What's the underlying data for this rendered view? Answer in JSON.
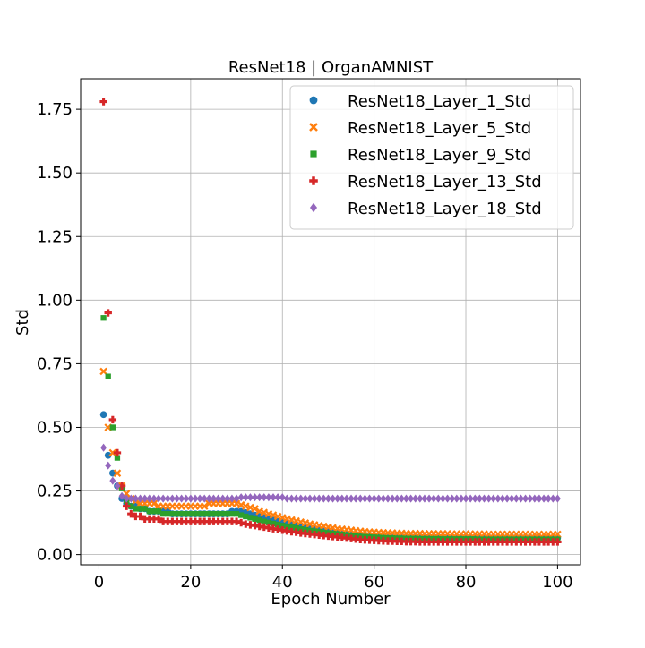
{
  "chart_data": {
    "type": "scatter",
    "title": "ResNet18 | OrganAMNIST",
    "xlabel": "Epoch Number",
    "ylabel": "Std",
    "xlim": [
      -4,
      105
    ],
    "ylim": [
      -0.04,
      1.87
    ],
    "xticks": [
      0,
      20,
      40,
      60,
      80,
      100
    ],
    "xtick_labels": [
      "0",
      "20",
      "40",
      "60",
      "80",
      "100"
    ],
    "yticks": [
      0.0,
      0.25,
      0.5,
      0.75,
      1.0,
      1.25,
      1.5,
      1.75
    ],
    "ytick_labels": [
      "0.00",
      "0.25",
      "0.50",
      "0.75",
      "1.00",
      "1.25",
      "1.50",
      "1.75"
    ],
    "grid": true,
    "legend_position": "top-right",
    "x": [
      1,
      2,
      3,
      4,
      5,
      6,
      7,
      8,
      9,
      10,
      11,
      12,
      13,
      14,
      15,
      16,
      17,
      18,
      19,
      20,
      21,
      22,
      23,
      24,
      25,
      26,
      27,
      28,
      29,
      30,
      31,
      32,
      33,
      34,
      35,
      36,
      37,
      38,
      39,
      40,
      41,
      42,
      43,
      44,
      45,
      46,
      47,
      48,
      49,
      50,
      51,
      52,
      53,
      54,
      55,
      56,
      57,
      58,
      59,
      60,
      61,
      62,
      63,
      64,
      65,
      66,
      67,
      68,
      69,
      70,
      71,
      72,
      73,
      74,
      75,
      76,
      77,
      78,
      79,
      80,
      81,
      82,
      83,
      84,
      85,
      86,
      87,
      88,
      89,
      90,
      91,
      92,
      93,
      94,
      95,
      96,
      97,
      98,
      99,
      100
    ],
    "series": [
      {
        "name": "ResNet18_Layer_1_Std",
        "color": "#1f77b4",
        "marker": "circle",
        "values": [
          0.55,
          0.39,
          0.32,
          0.27,
          0.22,
          0.2,
          0.19,
          0.19,
          0.18,
          0.18,
          0.17,
          0.17,
          0.17,
          0.17,
          0.17,
          0.16,
          0.16,
          0.16,
          0.16,
          0.16,
          0.16,
          0.16,
          0.16,
          0.16,
          0.16,
          0.16,
          0.16,
          0.16,
          0.17,
          0.17,
          0.17,
          0.165,
          0.16,
          0.155,
          0.15,
          0.145,
          0.14,
          0.135,
          0.13,
          0.126,
          0.122,
          0.118,
          0.114,
          0.11,
          0.107,
          0.104,
          0.101,
          0.098,
          0.095,
          0.092,
          0.09,
          0.088,
          0.086,
          0.084,
          0.082,
          0.08,
          0.078,
          0.077,
          0.076,
          0.075,
          0.074,
          0.073,
          0.072,
          0.072,
          0.071,
          0.071,
          0.07,
          0.07,
          0.07,
          0.07,
          0.069,
          0.069,
          0.069,
          0.069,
          0.069,
          0.068,
          0.068,
          0.068,
          0.068,
          0.068,
          0.068,
          0.068,
          0.067,
          0.067,
          0.067,
          0.067,
          0.067,
          0.067,
          0.067,
          0.067,
          0.067,
          0.067,
          0.067,
          0.067,
          0.067,
          0.066,
          0.066,
          0.066,
          0.066,
          0.066
        ]
      },
      {
        "name": "ResNet18_Layer_5_Std",
        "color": "#ff7f0e",
        "marker": "x",
        "values": [
          0.72,
          0.5,
          0.4,
          0.32,
          0.27,
          0.24,
          0.22,
          0.21,
          0.2,
          0.2,
          0.2,
          0.2,
          0.19,
          0.19,
          0.19,
          0.19,
          0.19,
          0.19,
          0.19,
          0.19,
          0.19,
          0.19,
          0.19,
          0.2,
          0.2,
          0.2,
          0.2,
          0.2,
          0.2,
          0.2,
          0.195,
          0.19,
          0.185,
          0.18,
          0.17,
          0.165,
          0.16,
          0.155,
          0.15,
          0.145,
          0.14,
          0.136,
          0.132,
          0.128,
          0.124,
          0.12,
          0.117,
          0.114,
          0.111,
          0.108,
          0.105,
          0.102,
          0.1,
          0.098,
          0.096,
          0.094,
          0.092,
          0.09,
          0.089,
          0.088,
          0.087,
          0.086,
          0.085,
          0.085,
          0.084,
          0.084,
          0.083,
          0.083,
          0.083,
          0.083,
          0.082,
          0.082,
          0.082,
          0.082,
          0.082,
          0.082,
          0.081,
          0.081,
          0.081,
          0.081,
          0.081,
          0.081,
          0.081,
          0.081,
          0.08,
          0.08,
          0.08,
          0.08,
          0.08,
          0.08,
          0.08,
          0.08,
          0.08,
          0.08,
          0.08,
          0.08,
          0.08,
          0.08,
          0.08,
          0.08
        ]
      },
      {
        "name": "ResNet18_Layer_9_Std",
        "color": "#2ca02c",
        "marker": "square",
        "values": [
          0.93,
          0.7,
          0.5,
          0.38,
          0.26,
          0.21,
          0.19,
          0.18,
          0.18,
          0.18,
          0.17,
          0.17,
          0.17,
          0.16,
          0.16,
          0.16,
          0.16,
          0.16,
          0.16,
          0.16,
          0.16,
          0.16,
          0.16,
          0.16,
          0.16,
          0.16,
          0.16,
          0.16,
          0.16,
          0.16,
          0.155,
          0.15,
          0.145,
          0.14,
          0.135,
          0.13,
          0.126,
          0.122,
          0.118,
          0.114,
          0.11,
          0.107,
          0.104,
          0.1,
          0.097,
          0.094,
          0.092,
          0.09,
          0.087,
          0.085,
          0.083,
          0.081,
          0.079,
          0.077,
          0.075,
          0.073,
          0.071,
          0.07,
          0.069,
          0.068,
          0.067,
          0.066,
          0.065,
          0.065,
          0.064,
          0.064,
          0.063,
          0.063,
          0.063,
          0.062,
          0.062,
          0.062,
          0.062,
          0.062,
          0.061,
          0.061,
          0.061,
          0.061,
          0.061,
          0.061,
          0.061,
          0.061,
          0.06,
          0.06,
          0.06,
          0.06,
          0.06,
          0.06,
          0.06,
          0.06,
          0.06,
          0.06,
          0.06,
          0.06,
          0.06,
          0.06,
          0.06,
          0.06,
          0.06,
          0.06
        ]
      },
      {
        "name": "ResNet18_Layer_13_Std",
        "color": "#d62728",
        "marker": "plus",
        "values": [
          1.78,
          0.95,
          0.53,
          0.4,
          0.27,
          0.19,
          0.16,
          0.15,
          0.15,
          0.14,
          0.14,
          0.14,
          0.14,
          0.13,
          0.13,
          0.13,
          0.13,
          0.13,
          0.13,
          0.13,
          0.13,
          0.13,
          0.13,
          0.13,
          0.13,
          0.13,
          0.13,
          0.13,
          0.13,
          0.13,
          0.125,
          0.12,
          0.117,
          0.114,
          0.111,
          0.108,
          0.105,
          0.102,
          0.099,
          0.096,
          0.093,
          0.09,
          0.088,
          0.085,
          0.083,
          0.081,
          0.079,
          0.077,
          0.075,
          0.073,
          0.071,
          0.069,
          0.067,
          0.065,
          0.063,
          0.061,
          0.059,
          0.058,
          0.057,
          0.056,
          0.055,
          0.054,
          0.053,
          0.053,
          0.052,
          0.052,
          0.051,
          0.051,
          0.051,
          0.05,
          0.05,
          0.05,
          0.05,
          0.05,
          0.05,
          0.05,
          0.05,
          0.05,
          0.05,
          0.05,
          0.05,
          0.05,
          0.05,
          0.05,
          0.05,
          0.05,
          0.05,
          0.05,
          0.05,
          0.05,
          0.05,
          0.05,
          0.05,
          0.05,
          0.05,
          0.05,
          0.05,
          0.05,
          0.05,
          0.05
        ]
      },
      {
        "name": "ResNet18_Layer_18_Std",
        "color": "#9467bd",
        "marker": "diamond",
        "values": [
          0.42,
          0.35,
          0.29,
          0.27,
          0.23,
          0.22,
          0.22,
          0.22,
          0.22,
          0.22,
          0.22,
          0.22,
          0.22,
          0.22,
          0.22,
          0.22,
          0.22,
          0.22,
          0.22,
          0.22,
          0.22,
          0.22,
          0.22,
          0.22,
          0.22,
          0.22,
          0.22,
          0.22,
          0.22,
          0.22,
          0.225,
          0.225,
          0.225,
          0.225,
          0.225,
          0.225,
          0.225,
          0.225,
          0.225,
          0.225,
          0.22,
          0.22,
          0.22,
          0.22,
          0.22,
          0.22,
          0.22,
          0.22,
          0.22,
          0.22,
          0.22,
          0.22,
          0.22,
          0.22,
          0.22,
          0.22,
          0.22,
          0.22,
          0.22,
          0.22,
          0.22,
          0.22,
          0.22,
          0.22,
          0.22,
          0.22,
          0.22,
          0.22,
          0.22,
          0.22,
          0.22,
          0.22,
          0.22,
          0.22,
          0.22,
          0.22,
          0.22,
          0.22,
          0.22,
          0.22,
          0.22,
          0.22,
          0.22,
          0.22,
          0.22,
          0.22,
          0.22,
          0.22,
          0.22,
          0.22,
          0.22,
          0.22,
          0.22,
          0.22,
          0.22,
          0.22,
          0.22,
          0.22,
          0.22,
          0.22
        ]
      }
    ]
  }
}
